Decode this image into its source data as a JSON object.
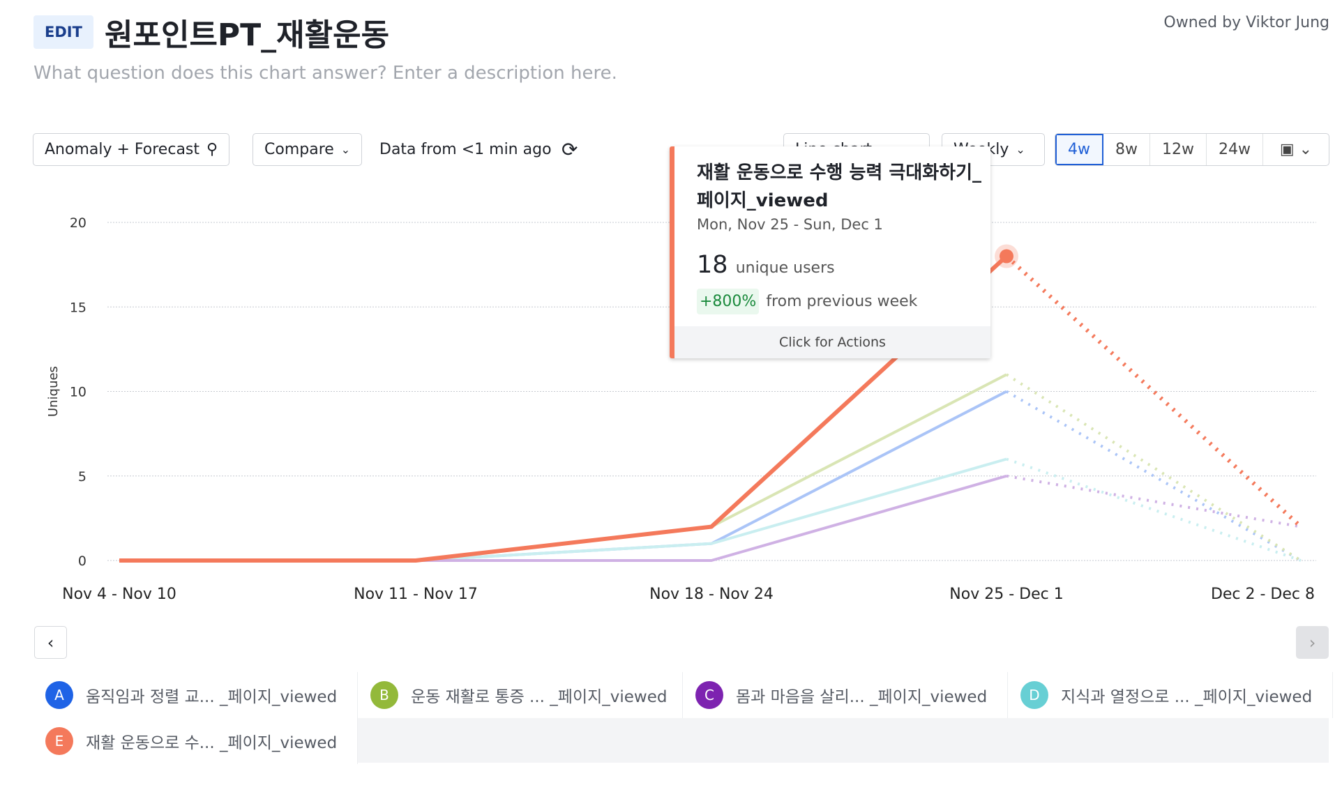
{
  "header": {
    "edit_label": "EDIT",
    "title": "원포인트PT_재활운동",
    "owner": "Owned by Viktor Jung",
    "description_placeholder": "What question does this chart answer? Enter a description here."
  },
  "toolbar": {
    "anomaly_label": "Anomaly + Forecast",
    "compare_label": "Compare",
    "data_freshness": "Data from <1 min ago",
    "chart_type_label": "Line chart",
    "interval_label": "Weekly",
    "ranges": [
      "4w",
      "8w",
      "12w",
      "24w"
    ],
    "selected_range": "4w"
  },
  "tooltip": {
    "title": "재활 운동으로 수행 능력 극대화하기_페이지_viewed",
    "date": "Mon, Nov 25 - Sun, Dec 1",
    "value": "18",
    "unit": "unique users",
    "change": "+800%",
    "change_label": "from previous week",
    "action": "Click for Actions"
  },
  "chart_data": {
    "type": "line",
    "ylabel": "Uniques",
    "ylim": [
      0,
      20
    ],
    "yticks": [
      "0",
      "5",
      "10",
      "15",
      "20"
    ],
    "grid": true,
    "categories": [
      "Nov 4 - Nov 10",
      "Nov 11 - Nov 17",
      "Nov 18 - Nov 24",
      "Nov 25 - Dec 1",
      "Dec 2 - Dec 8"
    ],
    "forecast_from_index": 3,
    "series": [
      {
        "letter": "A",
        "name": "움직임과 정렬 교... _페이지_viewed",
        "color": "#1f63e6",
        "line": "#aac4f7",
        "values": [
          0,
          0,
          1,
          10,
          0
        ]
      },
      {
        "letter": "B",
        "name": "운동 재활로 통증 ... _페이지_viewed",
        "color": "#93b93a",
        "line": "#d9e5b4",
        "values": [
          0,
          0,
          2,
          11,
          0
        ]
      },
      {
        "letter": "C",
        "name": "몸과 마음을 살리... _페이지_viewed",
        "color": "#7d23b0",
        "line": "#cfb1e4",
        "values": [
          0,
          0,
          0,
          5,
          2
        ]
      },
      {
        "letter": "D",
        "name": "지식과 열정으로 ... _페이지_viewed",
        "color": "#67cfd4",
        "line": "#c9eef0",
        "values": [
          0,
          0,
          1,
          6,
          0
        ]
      },
      {
        "letter": "E",
        "name": "재활 운동으로 수... _페이지_viewed",
        "color": "#f4795b",
        "line": "#f4795b",
        "values": [
          0,
          0,
          2,
          18,
          2
        ]
      }
    ]
  }
}
